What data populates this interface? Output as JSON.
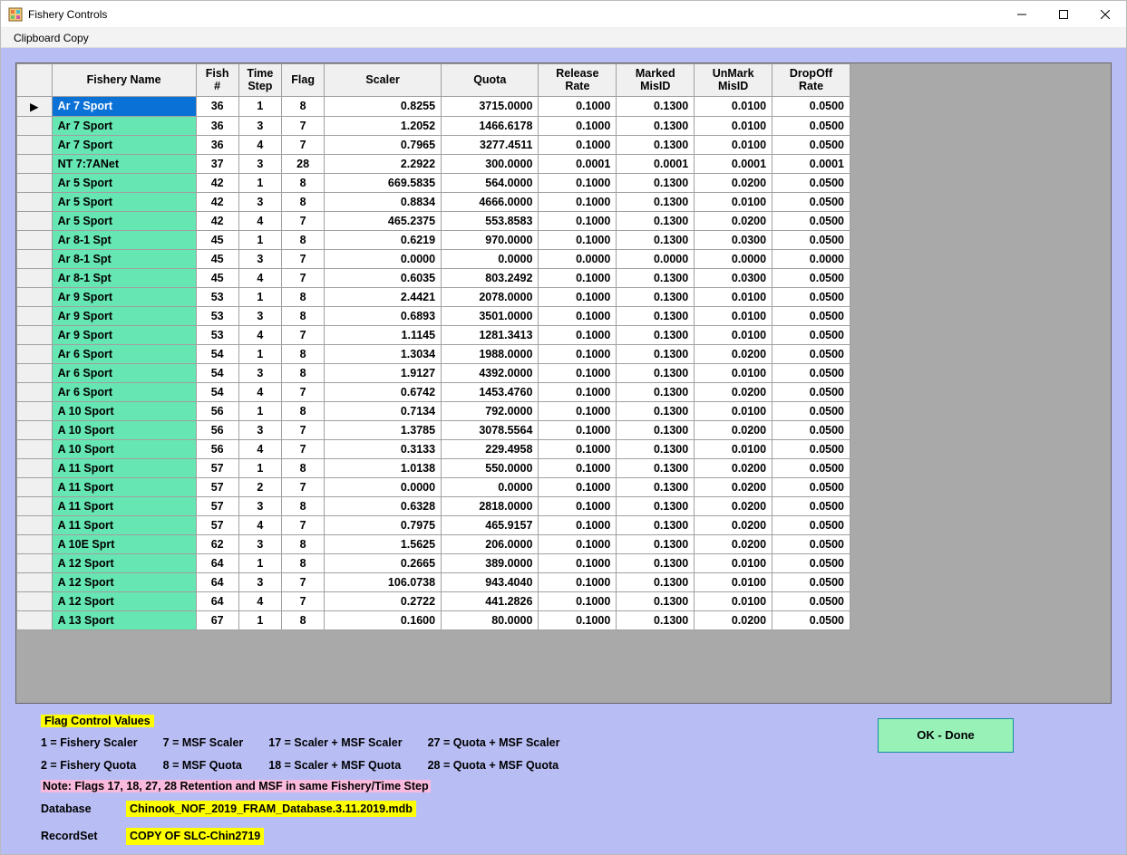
{
  "window": {
    "title": "Fishery Controls"
  },
  "menu": {
    "clipboard_copy": "Clipboard Copy"
  },
  "table": {
    "columns": [
      "",
      "Fishery Name",
      "Fish\n#",
      "Time\nStep",
      "Flag",
      "Scaler",
      "Quota",
      "Release\nRate",
      "Marked\nMisID",
      "UnMark\nMisID",
      "DropOff\nRate"
    ],
    "selected_row_index": 0,
    "rows": [
      {
        "name": "Ar 7 Sport",
        "fish": 36,
        "step": 1,
        "flag": 8,
        "scaler": "0.8255",
        "quota": "3715.0000",
        "rel": "0.1000",
        "mm": "0.1300",
        "um": "0.0100",
        "do": "0.0500"
      },
      {
        "name": "Ar 7 Sport",
        "fish": 36,
        "step": 3,
        "flag": 7,
        "scaler": "1.2052",
        "quota": "1466.6178",
        "rel": "0.1000",
        "mm": "0.1300",
        "um": "0.0100",
        "do": "0.0500"
      },
      {
        "name": "Ar 7 Sport",
        "fish": 36,
        "step": 4,
        "flag": 7,
        "scaler": "0.7965",
        "quota": "3277.4511",
        "rel": "0.1000",
        "mm": "0.1300",
        "um": "0.0100",
        "do": "0.0500"
      },
      {
        "name": "NT 7:7ANet",
        "fish": 37,
        "step": 3,
        "flag": 28,
        "scaler": "2.2922",
        "quota": "300.0000",
        "rel": "0.0001",
        "mm": "0.0001",
        "um": "0.0001",
        "do": "0.0001"
      },
      {
        "name": "Ar 5 Sport",
        "fish": 42,
        "step": 1,
        "flag": 8,
        "scaler": "669.5835",
        "quota": "564.0000",
        "rel": "0.1000",
        "mm": "0.1300",
        "um": "0.0200",
        "do": "0.0500"
      },
      {
        "name": "Ar 5 Sport",
        "fish": 42,
        "step": 3,
        "flag": 8,
        "scaler": "0.8834",
        "quota": "4666.0000",
        "rel": "0.1000",
        "mm": "0.1300",
        "um": "0.0100",
        "do": "0.0500"
      },
      {
        "name": "Ar 5 Sport",
        "fish": 42,
        "step": 4,
        "flag": 7,
        "scaler": "465.2375",
        "quota": "553.8583",
        "rel": "0.1000",
        "mm": "0.1300",
        "um": "0.0200",
        "do": "0.0500"
      },
      {
        "name": "Ar 8-1 Spt",
        "fish": 45,
        "step": 1,
        "flag": 8,
        "scaler": "0.6219",
        "quota": "970.0000",
        "rel": "0.1000",
        "mm": "0.1300",
        "um": "0.0300",
        "do": "0.0500"
      },
      {
        "name": "Ar 8-1 Spt",
        "fish": 45,
        "step": 3,
        "flag": 7,
        "scaler": "0.0000",
        "quota": "0.0000",
        "rel": "0.0000",
        "mm": "0.0000",
        "um": "0.0000",
        "do": "0.0000"
      },
      {
        "name": "Ar 8-1 Spt",
        "fish": 45,
        "step": 4,
        "flag": 7,
        "scaler": "0.6035",
        "quota": "803.2492",
        "rel": "0.1000",
        "mm": "0.1300",
        "um": "0.0300",
        "do": "0.0500"
      },
      {
        "name": "Ar 9 Sport",
        "fish": 53,
        "step": 1,
        "flag": 8,
        "scaler": "2.4421",
        "quota": "2078.0000",
        "rel": "0.1000",
        "mm": "0.1300",
        "um": "0.0100",
        "do": "0.0500"
      },
      {
        "name": "Ar 9 Sport",
        "fish": 53,
        "step": 3,
        "flag": 8,
        "scaler": "0.6893",
        "quota": "3501.0000",
        "rel": "0.1000",
        "mm": "0.1300",
        "um": "0.0100",
        "do": "0.0500"
      },
      {
        "name": "Ar 9 Sport",
        "fish": 53,
        "step": 4,
        "flag": 7,
        "scaler": "1.1145",
        "quota": "1281.3413",
        "rel": "0.1000",
        "mm": "0.1300",
        "um": "0.0100",
        "do": "0.0500"
      },
      {
        "name": "Ar 6 Sport",
        "fish": 54,
        "step": 1,
        "flag": 8,
        "scaler": "1.3034",
        "quota": "1988.0000",
        "rel": "0.1000",
        "mm": "0.1300",
        "um": "0.0200",
        "do": "0.0500"
      },
      {
        "name": "Ar 6 Sport",
        "fish": 54,
        "step": 3,
        "flag": 8,
        "scaler": "1.9127",
        "quota": "4392.0000",
        "rel": "0.1000",
        "mm": "0.1300",
        "um": "0.0100",
        "do": "0.0500"
      },
      {
        "name": "Ar 6 Sport",
        "fish": 54,
        "step": 4,
        "flag": 7,
        "scaler": "0.6742",
        "quota": "1453.4760",
        "rel": "0.1000",
        "mm": "0.1300",
        "um": "0.0200",
        "do": "0.0500"
      },
      {
        "name": "A 10 Sport",
        "fish": 56,
        "step": 1,
        "flag": 8,
        "scaler": "0.7134",
        "quota": "792.0000",
        "rel": "0.1000",
        "mm": "0.1300",
        "um": "0.0100",
        "do": "0.0500"
      },
      {
        "name": "A 10 Sport",
        "fish": 56,
        "step": 3,
        "flag": 7,
        "scaler": "1.3785",
        "quota": "3078.5564",
        "rel": "0.1000",
        "mm": "0.1300",
        "um": "0.0200",
        "do": "0.0500"
      },
      {
        "name": "A 10 Sport",
        "fish": 56,
        "step": 4,
        "flag": 7,
        "scaler": "0.3133",
        "quota": "229.4958",
        "rel": "0.1000",
        "mm": "0.1300",
        "um": "0.0100",
        "do": "0.0500"
      },
      {
        "name": "A 11 Sport",
        "fish": 57,
        "step": 1,
        "flag": 8,
        "scaler": "1.0138",
        "quota": "550.0000",
        "rel": "0.1000",
        "mm": "0.1300",
        "um": "0.0200",
        "do": "0.0500"
      },
      {
        "name": "A 11 Sport",
        "fish": 57,
        "step": 2,
        "flag": 7,
        "scaler": "0.0000",
        "quota": "0.0000",
        "rel": "0.1000",
        "mm": "0.1300",
        "um": "0.0200",
        "do": "0.0500"
      },
      {
        "name": "A 11 Sport",
        "fish": 57,
        "step": 3,
        "flag": 8,
        "scaler": "0.6328",
        "quota": "2818.0000",
        "rel": "0.1000",
        "mm": "0.1300",
        "um": "0.0200",
        "do": "0.0500"
      },
      {
        "name": "A 11 Sport",
        "fish": 57,
        "step": 4,
        "flag": 7,
        "scaler": "0.7975",
        "quota": "465.9157",
        "rel": "0.1000",
        "mm": "0.1300",
        "um": "0.0200",
        "do": "0.0500"
      },
      {
        "name": "A 10E Sprt",
        "fish": 62,
        "step": 3,
        "flag": 8,
        "scaler": "1.5625",
        "quota": "206.0000",
        "rel": "0.1000",
        "mm": "0.1300",
        "um": "0.0200",
        "do": "0.0500"
      },
      {
        "name": "A 12 Sport",
        "fish": 64,
        "step": 1,
        "flag": 8,
        "scaler": "0.2665",
        "quota": "389.0000",
        "rel": "0.1000",
        "mm": "0.1300",
        "um": "0.0100",
        "do": "0.0500"
      },
      {
        "name": "A 12 Sport",
        "fish": 64,
        "step": 3,
        "flag": 7,
        "scaler": "106.0738",
        "quota": "943.4040",
        "rel": "0.1000",
        "mm": "0.1300",
        "um": "0.0100",
        "do": "0.0500"
      },
      {
        "name": "A 12 Sport",
        "fish": 64,
        "step": 4,
        "flag": 7,
        "scaler": "0.2722",
        "quota": "441.2826",
        "rel": "0.1000",
        "mm": "0.1300",
        "um": "0.0100",
        "do": "0.0500"
      },
      {
        "name": "A 13 Sport",
        "fish": 67,
        "step": 1,
        "flag": 8,
        "scaler": "0.1600",
        "quota": "80.0000",
        "rel": "0.1000",
        "mm": "0.1300",
        "um": "0.0200",
        "do": "0.0500"
      }
    ]
  },
  "legend": {
    "title": "Flag Control Values",
    "col1": [
      "1 = Fishery Scaler",
      "2 = Fishery Quota"
    ],
    "col2": [
      "7 = MSF Scaler",
      "8 = MSF Quota"
    ],
    "col3": [
      "17 = Scaler + MSF Scaler",
      "18 = Scaler + MSF Quota"
    ],
    "col4": [
      "27 = Quota + MSF Scaler",
      "28 = Quota + MSF Quota"
    ],
    "note": "Note: Flags 17, 18, 27, 28 Retention and MSF in same Fishery/Time Step"
  },
  "footer": {
    "database_label": "Database",
    "database_value": "Chinook_NOF_2019_FRAM_Database.3.11.2019.mdb",
    "recordset_label": "RecordSet",
    "recordset_value": "COPY OF SLC-Chin2719"
  },
  "buttons": {
    "ok": "OK - Done"
  }
}
